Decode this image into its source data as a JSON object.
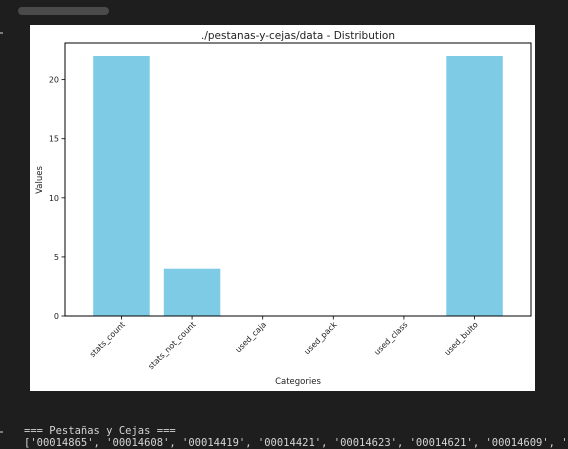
{
  "chart_data": {
    "type": "bar",
    "title": "./pestanas-y-cejas/data - Distribution",
    "xlabel": "Categories",
    "ylabel": "Values",
    "categories": [
      "stats_count",
      "stats_not_count",
      "used_caja",
      "used_pack",
      "used_class",
      "used_bulto"
    ],
    "values": [
      22,
      4,
      0,
      0,
      0,
      22
    ],
    "ylim": [
      0,
      23.1
    ],
    "yticks": [
      0,
      5,
      10,
      15,
      20
    ],
    "bar_color": "#7ecbe6",
    "grid": false,
    "legend": "none"
  },
  "output": {
    "header": "=== Pestañas y Cejas ===",
    "line": "['00014865', '00014608', '00014419', '00014421', '00014623', '00014621', '00014609', '"
  }
}
